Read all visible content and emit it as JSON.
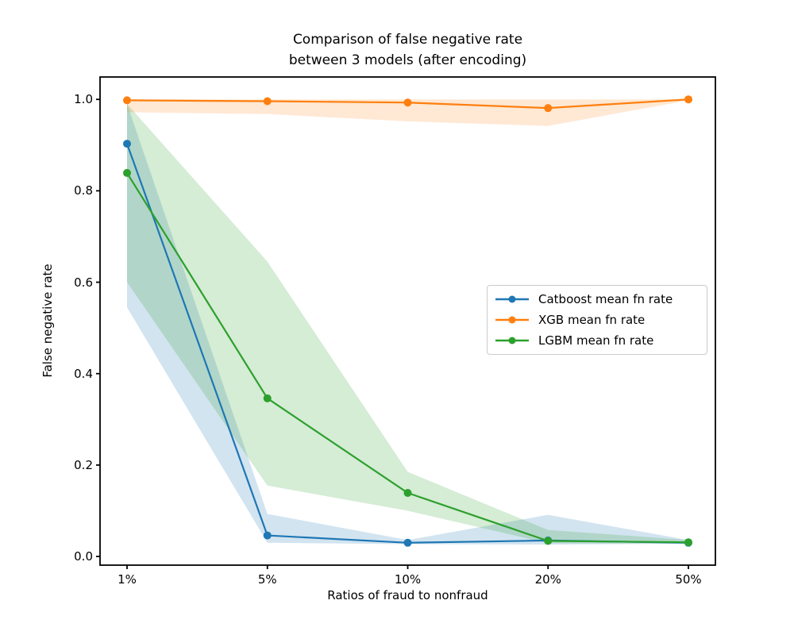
{
  "chart_data": {
    "type": "line",
    "title_lines": [
      "Comparison of false negative rate",
      "between 3 models (after encoding)"
    ],
    "xlabel": "Ratios of fraud to nonfraud",
    "ylabel": "False negative rate",
    "categories": [
      "1%",
      "5%",
      "10%",
      "20%",
      "50%"
    ],
    "ytick_values": [
      0.0,
      0.2,
      0.4,
      0.6,
      0.8,
      1.0
    ],
    "ytick_labels": [
      "0.0",
      "0.2",
      "0.4",
      "0.6",
      "0.8",
      "1.0"
    ],
    "ylim": [
      -0.019,
      1.049
    ],
    "grid": false,
    "legend_position": "center-right",
    "background_color": "#ffffff",
    "spine_color": "#000000",
    "series": [
      {
        "key": "catboost",
        "name": "Catboost mean fn rate",
        "color": "#1f77b4",
        "band_opacity": 0.2,
        "values": [
          0.903,
          0.046,
          0.03,
          0.035,
          0.03
        ],
        "band_low": [
          0.545,
          0.03,
          0.027,
          0.026,
          0.028
        ],
        "band_high": [
          0.99,
          0.093,
          0.036,
          0.091,
          0.036
        ]
      },
      {
        "key": "xgb",
        "name": "XGB mean fn rate",
        "color": "#ff7f0e",
        "band_opacity": 0.18,
        "values": [
          0.998,
          0.996,
          0.993,
          0.981,
          1.0
        ],
        "band_low": [
          0.972,
          0.968,
          0.952,
          0.942,
          0.998
        ],
        "band_high": [
          1.0,
          1.0,
          1.0,
          1.0,
          1.0
        ]
      },
      {
        "key": "lgbm",
        "name": "LGBM mean fn rate",
        "color": "#2ca02c",
        "band_opacity": 0.2,
        "values": [
          0.839,
          0.346,
          0.139,
          0.034,
          0.031
        ],
        "band_low": [
          0.6,
          0.155,
          0.1,
          0.029,
          0.028
        ],
        "band_high": [
          0.99,
          0.645,
          0.185,
          0.058,
          0.036
        ]
      }
    ]
  }
}
